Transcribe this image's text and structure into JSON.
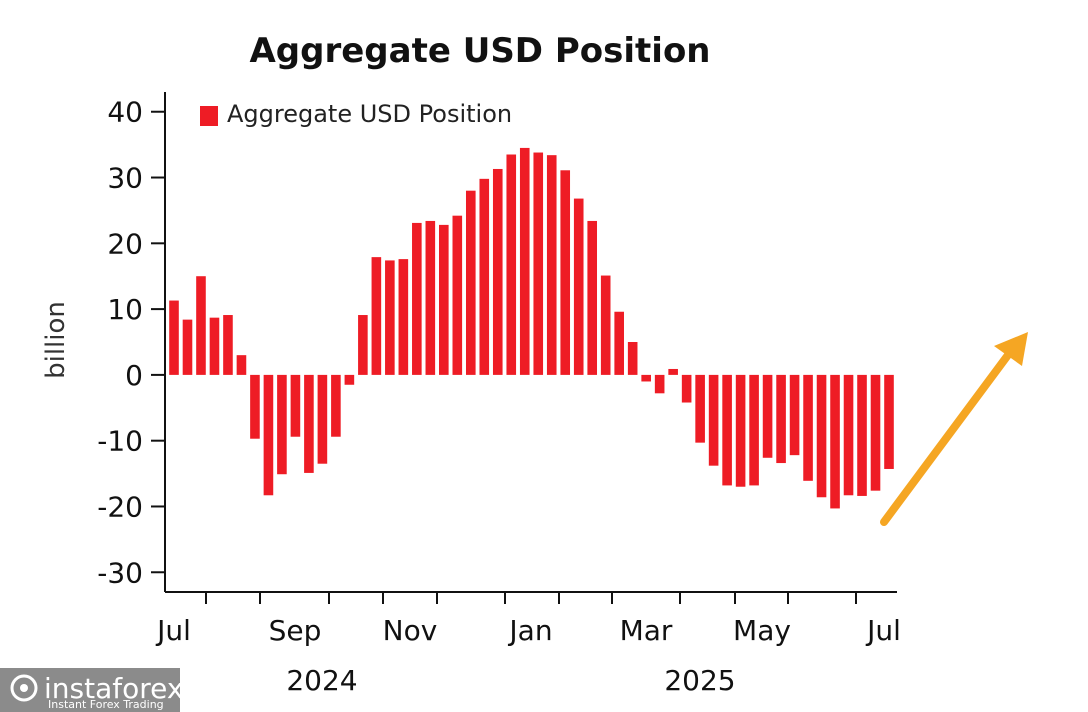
{
  "chart_data": {
    "type": "bar",
    "title": "Aggregate USD Position",
    "ylabel": "billion",
    "xlabel": "",
    "ylim": [
      -33,
      43
    ],
    "yticks": [
      40,
      30,
      20,
      10,
      0,
      -10,
      -20,
      -30
    ],
    "grid": false,
    "legend_position": "top-left",
    "series": [
      {
        "name": "Aggregate USD Position",
        "color": "#ee1c25",
        "values": [
          11.3,
          8.4,
          15.0,
          8.7,
          9.1,
          3.0,
          -9.7,
          -18.3,
          -15.1,
          -9.4,
          -14.9,
          -13.5,
          -9.4,
          -1.5,
          9.1,
          17.9,
          17.4,
          17.6,
          23.1,
          23.4,
          22.8,
          24.2,
          28.0,
          29.8,
          31.3,
          33.5,
          34.5,
          33.8,
          33.4,
          31.1,
          26.8,
          23.4,
          15.1,
          9.6,
          5.0,
          -1.0,
          -2.8,
          0.9,
          -4.2,
          -10.3,
          -13.8,
          -16.8,
          -17.0,
          -16.8,
          -12.6,
          -13.4,
          -12.2,
          -16.1,
          -18.6,
          -20.3,
          -18.3,
          -18.4,
          -17.6,
          -14.3
        ]
      }
    ],
    "x_month_labels": [
      "Jul",
      "Sep",
      "Nov",
      "Jan",
      "Mar",
      "May",
      "Jul"
    ],
    "x_year_labels": [
      "2024",
      "2025"
    ],
    "annotation": {
      "type": "arrow",
      "color": "#f5a623",
      "meaning": "upward trend"
    }
  },
  "watermark": {
    "brand": "instaforex",
    "tagline": "Instant Forex Trading"
  }
}
